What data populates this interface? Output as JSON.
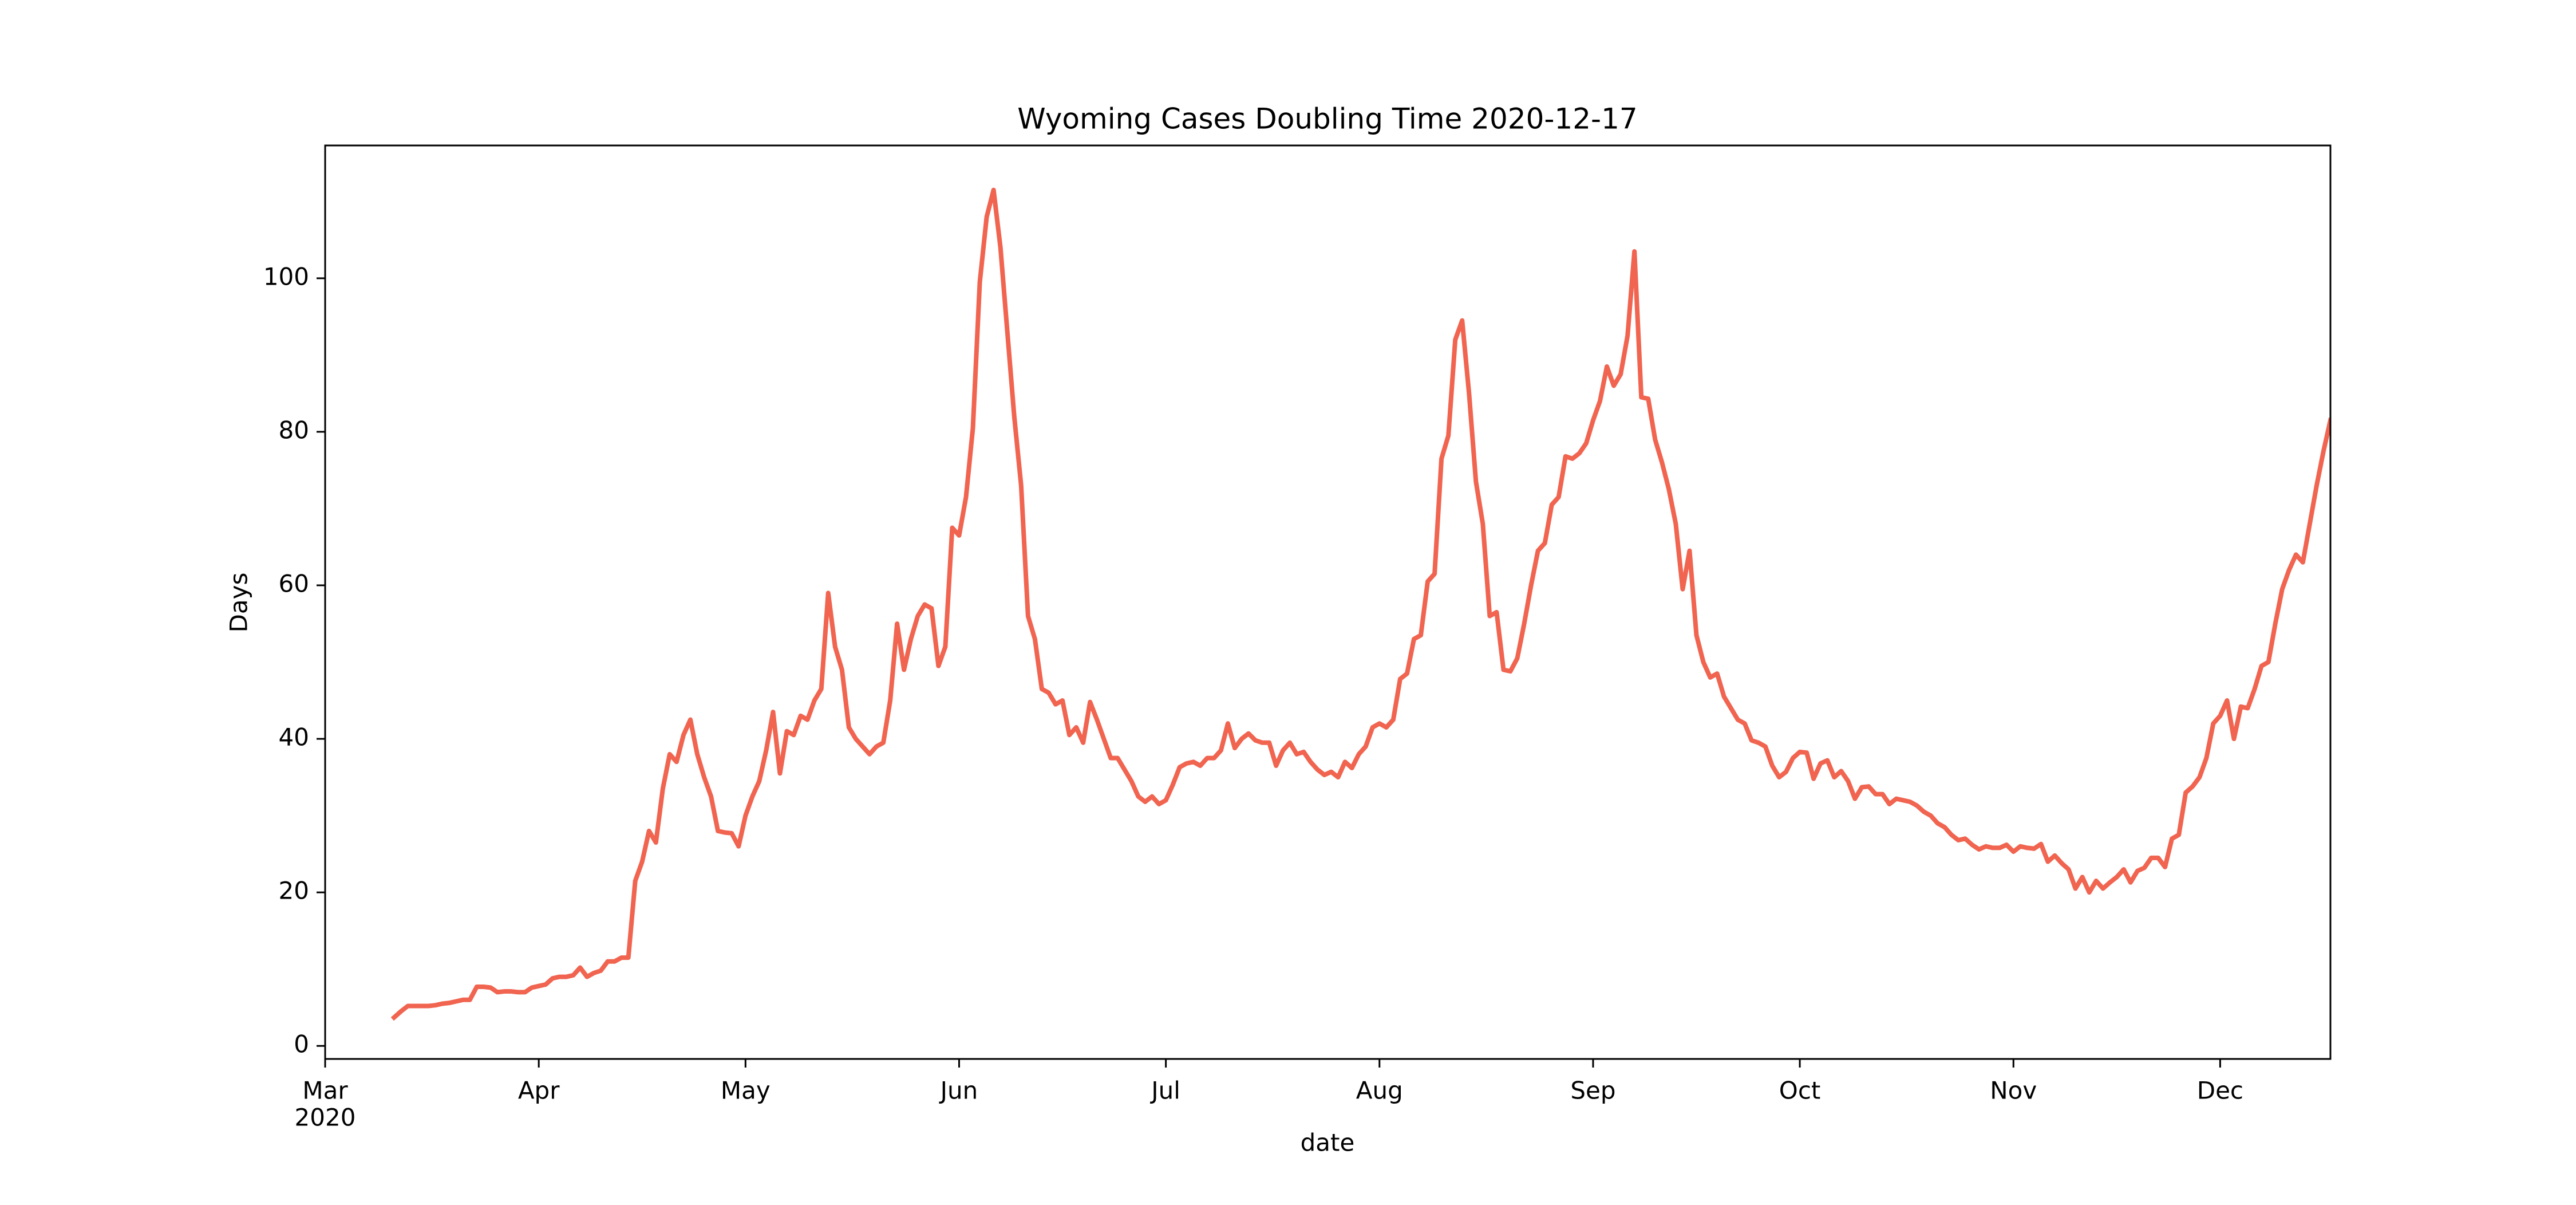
{
  "chart_data": {
    "type": "line",
    "title": "Wyoming Cases Doubling Time 2020-12-17",
    "xlabel": "date",
    "ylabel": "Days",
    "color": "#f06450",
    "x": [
      "2020-03-11",
      "2020-03-12",
      "2020-03-13",
      "2020-03-14",
      "2020-03-15",
      "2020-03-16",
      "2020-03-17",
      "2020-03-18",
      "2020-03-19",
      "2020-03-20",
      "2020-03-21",
      "2020-03-22",
      "2020-03-23",
      "2020-03-24",
      "2020-03-25",
      "2020-03-26",
      "2020-03-27",
      "2020-03-28",
      "2020-03-29",
      "2020-03-30",
      "2020-03-31",
      "2020-04-01",
      "2020-04-02",
      "2020-04-03",
      "2020-04-04",
      "2020-04-05",
      "2020-04-06",
      "2020-04-07",
      "2020-04-08",
      "2020-04-09",
      "2020-04-10",
      "2020-04-11",
      "2020-04-12",
      "2020-04-13",
      "2020-04-14",
      "2020-04-15",
      "2020-04-16",
      "2020-04-17",
      "2020-04-18",
      "2020-04-19",
      "2020-04-20",
      "2020-04-21",
      "2020-04-22",
      "2020-04-23",
      "2020-04-24",
      "2020-04-25",
      "2020-04-26",
      "2020-04-27",
      "2020-04-28",
      "2020-04-29",
      "2020-04-30",
      "2020-05-01",
      "2020-05-02",
      "2020-05-03",
      "2020-05-04",
      "2020-05-05",
      "2020-05-06",
      "2020-05-07",
      "2020-05-08",
      "2020-05-09",
      "2020-05-10",
      "2020-05-11",
      "2020-05-12",
      "2020-05-13",
      "2020-05-14",
      "2020-05-15",
      "2020-05-16",
      "2020-05-17",
      "2020-05-18",
      "2020-05-19",
      "2020-05-20",
      "2020-05-21",
      "2020-05-22",
      "2020-05-23",
      "2020-05-24",
      "2020-05-25",
      "2020-05-26",
      "2020-05-27",
      "2020-05-28",
      "2020-05-29",
      "2020-05-30",
      "2020-05-31",
      "2020-06-01",
      "2020-06-02",
      "2020-06-03",
      "2020-06-04",
      "2020-06-05",
      "2020-06-06",
      "2020-06-07",
      "2020-06-08",
      "2020-06-09",
      "2020-06-10",
      "2020-06-11",
      "2020-06-12",
      "2020-06-13",
      "2020-06-14",
      "2020-06-15",
      "2020-06-16",
      "2020-06-17",
      "2020-06-18",
      "2020-06-19",
      "2020-06-20",
      "2020-06-21",
      "2020-06-22",
      "2020-06-23",
      "2020-06-24",
      "2020-06-25",
      "2020-06-26",
      "2020-06-27",
      "2020-06-28",
      "2020-06-29",
      "2020-06-30",
      "2020-07-01",
      "2020-07-02",
      "2020-07-03",
      "2020-07-04",
      "2020-07-05",
      "2020-07-06",
      "2020-07-07",
      "2020-07-08",
      "2020-07-09",
      "2020-07-10",
      "2020-07-11",
      "2020-07-12",
      "2020-07-13",
      "2020-07-14",
      "2020-07-15",
      "2020-07-16",
      "2020-07-17",
      "2020-07-18",
      "2020-07-19",
      "2020-07-20",
      "2020-07-21",
      "2020-07-22",
      "2020-07-23",
      "2020-07-24",
      "2020-07-25",
      "2020-07-26",
      "2020-07-27",
      "2020-07-28",
      "2020-07-29",
      "2020-07-30",
      "2020-07-31",
      "2020-08-01",
      "2020-08-02",
      "2020-08-03",
      "2020-08-04",
      "2020-08-05",
      "2020-08-06",
      "2020-08-07",
      "2020-08-08",
      "2020-08-09",
      "2020-08-10",
      "2020-08-11",
      "2020-08-12",
      "2020-08-13",
      "2020-08-14",
      "2020-08-15",
      "2020-08-16",
      "2020-08-17",
      "2020-08-18",
      "2020-08-19",
      "2020-08-20",
      "2020-08-21",
      "2020-08-22",
      "2020-08-23",
      "2020-08-24",
      "2020-08-25",
      "2020-08-26",
      "2020-08-27",
      "2020-08-28",
      "2020-08-29",
      "2020-08-30",
      "2020-08-31",
      "2020-09-01",
      "2020-09-02",
      "2020-09-03",
      "2020-09-04",
      "2020-09-05",
      "2020-09-06",
      "2020-09-07",
      "2020-09-08",
      "2020-09-09",
      "2020-09-10",
      "2020-09-11",
      "2020-09-12",
      "2020-09-13",
      "2020-09-14",
      "2020-09-15",
      "2020-09-16",
      "2020-09-17",
      "2020-09-18",
      "2020-09-19",
      "2020-09-20",
      "2020-09-21",
      "2020-09-22",
      "2020-09-23",
      "2020-09-24",
      "2020-09-25",
      "2020-09-26",
      "2020-09-27",
      "2020-09-28",
      "2020-09-29",
      "2020-09-30",
      "2020-10-01",
      "2020-10-02",
      "2020-10-03",
      "2020-10-04",
      "2020-10-05",
      "2020-10-06",
      "2020-10-07",
      "2020-10-08",
      "2020-10-09",
      "2020-10-10",
      "2020-10-11",
      "2020-10-12",
      "2020-10-13",
      "2020-10-14",
      "2020-10-15",
      "2020-10-16",
      "2020-10-17",
      "2020-10-18",
      "2020-10-19",
      "2020-10-20",
      "2020-10-21",
      "2020-10-22",
      "2020-10-23",
      "2020-10-24",
      "2020-10-25",
      "2020-10-26",
      "2020-10-27",
      "2020-10-28",
      "2020-10-29",
      "2020-10-30",
      "2020-10-31",
      "2020-11-01",
      "2020-11-02",
      "2020-11-03",
      "2020-11-04",
      "2020-11-05",
      "2020-11-06",
      "2020-11-07",
      "2020-11-08",
      "2020-11-09",
      "2020-11-10",
      "2020-11-11",
      "2020-11-12",
      "2020-11-13",
      "2020-11-14",
      "2020-11-15",
      "2020-11-16",
      "2020-11-17",
      "2020-11-18",
      "2020-11-19",
      "2020-11-20",
      "2020-11-21",
      "2020-11-22",
      "2020-11-23",
      "2020-11-24",
      "2020-11-25",
      "2020-11-26",
      "2020-11-27",
      "2020-11-28",
      "2020-11-29",
      "2020-11-30",
      "2020-12-01",
      "2020-12-02",
      "2020-12-03",
      "2020-12-04",
      "2020-12-05",
      "2020-12-06",
      "2020-12-07",
      "2020-12-08",
      "2020-12-09",
      "2020-12-10",
      "2020-12-11",
      "2020-12-12",
      "2020-12-13",
      "2020-12-14",
      "2020-12-15",
      "2020-12-16",
      "2020-12-17"
    ],
    "values": [
      3.7,
      4.5,
      5.2,
      5.2,
      5.2,
      5.2,
      5.3,
      5.5,
      5.6,
      5.8,
      6.0,
      6.0,
      7.7,
      7.7,
      7.6,
      7.0,
      7.1,
      7.1,
      7.0,
      7.0,
      7.6,
      7.8,
      8.0,
      8.8,
      9.0,
      9.0,
      9.2,
      10.2,
      9.0,
      9.5,
      9.8,
      11.0,
      11.0,
      11.5,
      11.5,
      21.5,
      24,
      28,
      26.5,
      33.5,
      38,
      37,
      40.5,
      42.5,
      38,
      35,
      32.5,
      28,
      27.8,
      27.7,
      26,
      30,
      32.5,
      34.5,
      38.5,
      43.5,
      35.5,
      41,
      40.5,
      43,
      42.5,
      45,
      46.5,
      59,
      52,
      49,
      41.5,
      40,
      39,
      38,
      39,
      39.5,
      45,
      55,
      49,
      53,
      56,
      57.5,
      57,
      49.5,
      52,
      67.5,
      66.5,
      71.5,
      80.5,
      99.5,
      108,
      111.5,
      104,
      93,
      82,
      73,
      56,
      53,
      46.5,
      46,
      44.5,
      45,
      40.5,
      41.5,
      39.5,
      44.8,
      42.5,
      40,
      37.5,
      37.5,
      36,
      34.5,
      32.5,
      31.8,
      32.5,
      31.5,
      32,
      34,
      36.3,
      36.8,
      37,
      36.5,
      37.5,
      37.5,
      38.5,
      42,
      38.8,
      40,
      40.7,
      39.8,
      39.5,
      39.5,
      36.5,
      38.5,
      39.5,
      38,
      38.3,
      37,
      36,
      35.3,
      35.7,
      35,
      37,
      36.2,
      38,
      39,
      41.5,
      42,
      41.5,
      42.5,
      47.8,
      48.5,
      53,
      53.5,
      60.5,
      61.5,
      76.5,
      79.5,
      92,
      94.5,
      85,
      73.5,
      68,
      56,
      56.5,
      49,
      48.8,
      50.5,
      55,
      60,
      64.5,
      65.5,
      70.5,
      71.5,
      76.8,
      76.5,
      77.2,
      78.5,
      81.5,
      84,
      88.5,
      86,
      87.5,
      92.5,
      103.5,
      84.5,
      84.3,
      79,
      76,
      72.5,
      68,
      59.5,
      64.5,
      53.5,
      50,
      48,
      48.5,
      45.5,
      44,
      42.5,
      42,
      39.8,
      39.5,
      39,
      36.5,
      35,
      35.7,
      37.5,
      38.3,
      38.2,
      34.8,
      36.8,
      37.2,
      35,
      35.8,
      34.5,
      32.2,
      33.7,
      33.8,
      32.8,
      32.8,
      31.5,
      32.2,
      32,
      31.8,
      31.3,
      30.5,
      30,
      29,
      28.5,
      27.5,
      26.8,
      27,
      26.2,
      25.6,
      26,
      25.8,
      25.8,
      26.2,
      25.3,
      26,
      25.8,
      25.7,
      26.3,
      24,
      24.8,
      23.8,
      23,
      20.5,
      22,
      20,
      21.5,
      20.5,
      21.3,
      22,
      23,
      21.3,
      22.8,
      23.2,
      24.5,
      24.5,
      23.3,
      27,
      27.5,
      33,
      33.8,
      35,
      37.5,
      42,
      43,
      45,
      40,
      44.2,
      44,
      46.5,
      49.5,
      50,
      55,
      59.5,
      62,
      64,
      63,
      68,
      73,
      77.5,
      81.5
    ],
    "xlim": [
      "2020-03-01",
      "2020-12-17"
    ],
    "xticks": [
      {
        "value": "2020-03-01",
        "label": "Mar"
      },
      {
        "value": "2020-04-01",
        "label": "Apr"
      },
      {
        "value": "2020-05-01",
        "label": "May"
      },
      {
        "value": "2020-06-01",
        "label": "Jun"
      },
      {
        "value": "2020-07-01",
        "label": "Jul"
      },
      {
        "value": "2020-08-01",
        "label": "Aug"
      },
      {
        "value": "2020-09-01",
        "label": "Sep"
      },
      {
        "value": "2020-10-01",
        "label": "Oct"
      },
      {
        "value": "2020-11-01",
        "label": "Nov"
      },
      {
        "value": "2020-12-01",
        "label": "Dec"
      }
    ],
    "xtick_offset_label": "2020",
    "ylim": [
      -1.7,
      117.3
    ],
    "yticks": [
      0,
      20,
      40,
      60,
      80,
      100
    ]
  }
}
